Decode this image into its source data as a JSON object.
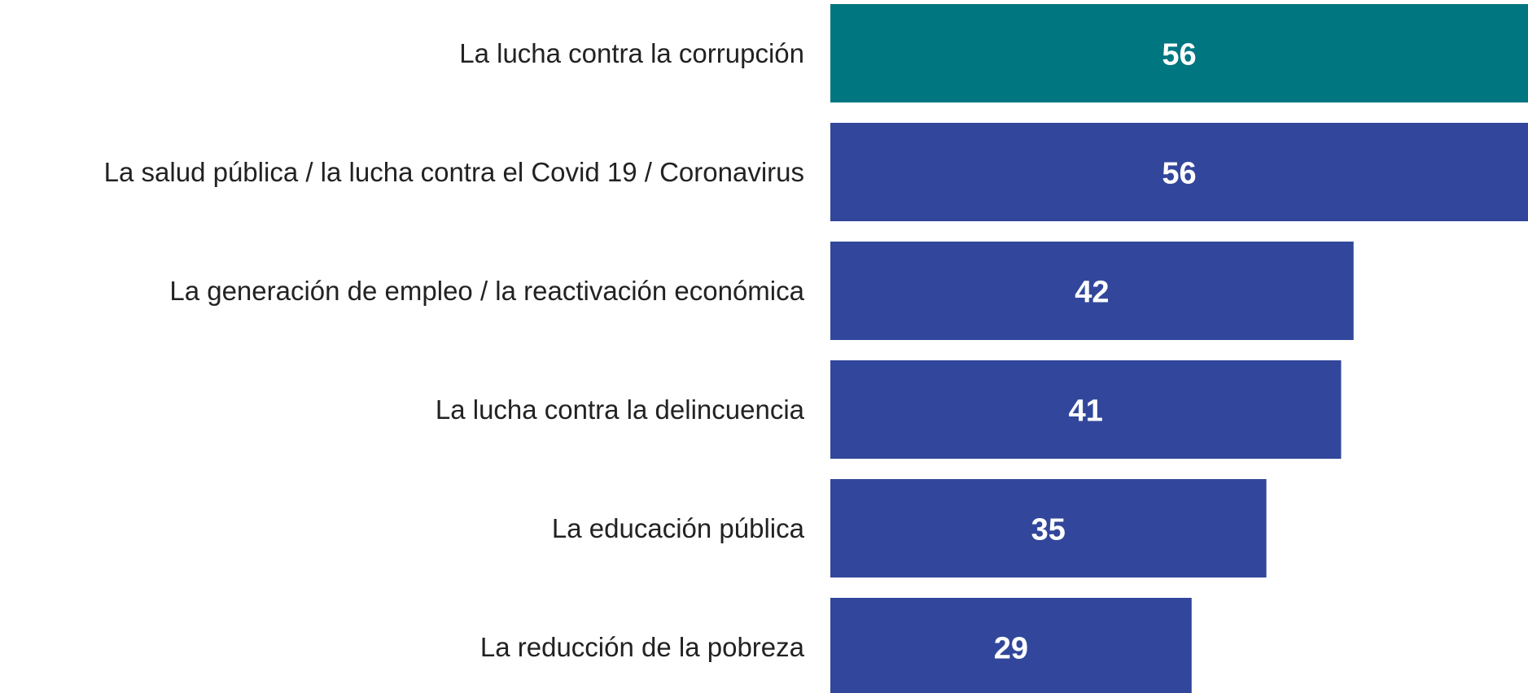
{
  "chart_data": {
    "type": "bar",
    "orientation": "horizontal",
    "categories": [
      "La lucha contra la corrupción",
      "La salud pública / la lucha contra el Covid 19 / Coronavirus",
      "La generación de empleo / la reactivación económica",
      "La lucha contra la delincuencia",
      "La educación pública",
      "La reducción de la pobreza"
    ],
    "values": [
      56,
      56,
      42,
      41,
      35,
      29
    ],
    "colors": [
      "#007681",
      "#32479b",
      "#32479b",
      "#32479b",
      "#32479b",
      "#32479b"
    ],
    "xlim": [
      0,
      56
    ]
  }
}
